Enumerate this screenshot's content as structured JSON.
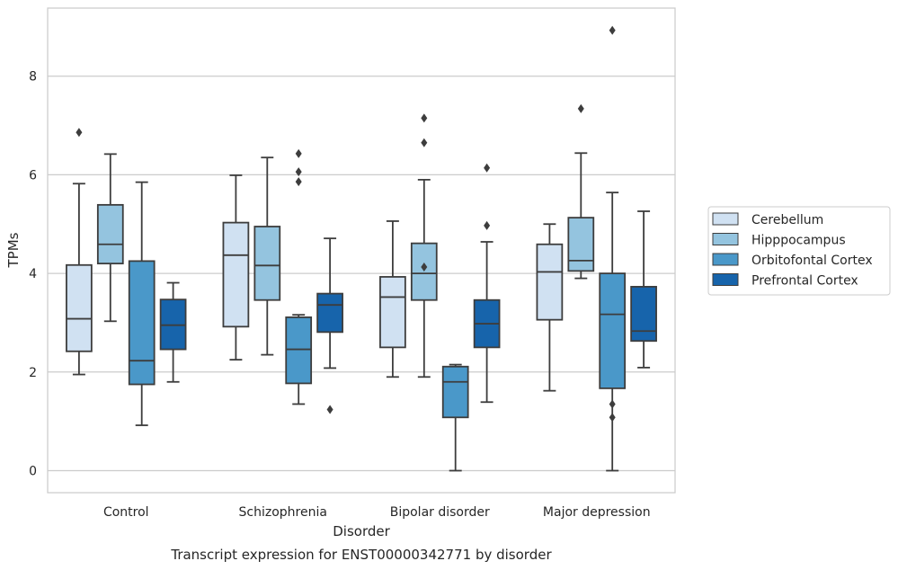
{
  "chart_data": {
    "type": "box",
    "title": "",
    "caption": "Transcript expression for ENST00000342771 by disorder",
    "xlabel": "Disorder",
    "ylabel": "TPMs",
    "ylim": [
      -0.4,
      9.3
    ],
    "yticks": [
      "0",
      "2",
      "4",
      "6",
      "8"
    ],
    "grid": true,
    "legend_position": "right",
    "categories": [
      "Control",
      "Schizophrenia",
      "Bipolar disorder",
      "Major depression"
    ],
    "series": [
      {
        "name": "Cerebellum",
        "color": "#d0e1f2",
        "boxes": [
          {
            "whislo": 1.95,
            "q1": 2.42,
            "med": 3.08,
            "q3": 4.17,
            "whishi": 5.82,
            "fliers": [
              6.86
            ]
          },
          {
            "whislo": 2.25,
            "q1": 2.92,
            "med": 4.37,
            "q3": 5.03,
            "whishi": 5.99,
            "fliers": []
          },
          {
            "whislo": 1.9,
            "q1": 2.5,
            "med": 3.52,
            "q3": 3.93,
            "whishi": 5.06,
            "fliers": []
          },
          {
            "whislo": 1.62,
            "q1": 3.06,
            "med": 4.03,
            "q3": 4.59,
            "whishi": 5.0,
            "fliers": []
          }
        ]
      },
      {
        "name": "Hipppocampus",
        "color": "#94c4df",
        "boxes": [
          {
            "whislo": 3.03,
            "q1": 4.2,
            "med": 4.59,
            "q3": 5.39,
            "whishi": 6.42,
            "fliers": []
          },
          {
            "whislo": 2.35,
            "q1": 3.46,
            "med": 4.16,
            "q3": 4.95,
            "whishi": 6.35,
            "fliers": []
          },
          {
            "whislo": 1.9,
            "q1": 3.46,
            "med": 4.0,
            "q3": 4.61,
            "whishi": 5.9,
            "fliers": [
              4.13,
              6.65,
              7.15
            ]
          },
          {
            "whislo": 3.9,
            "q1": 4.05,
            "med": 4.26,
            "q3": 5.13,
            "whishi": 6.44,
            "fliers": [
              7.34
            ]
          }
        ]
      },
      {
        "name": "Orbitofontal Cortex",
        "color": "#4a98c9",
        "boxes": [
          {
            "whislo": 0.92,
            "q1": 1.75,
            "med": 2.23,
            "q3": 4.25,
            "whishi": 5.85,
            "fliers": []
          },
          {
            "whislo": 1.35,
            "q1": 1.77,
            "med": 2.46,
            "q3": 3.11,
            "whishi": 3.16,
            "fliers": [
              5.86,
              6.06,
              6.43
            ]
          },
          {
            "whislo": 0.0,
            "q1": 1.08,
            "med": 1.8,
            "q3": 2.11,
            "whishi": 2.15,
            "fliers": []
          },
          {
            "whislo": 0.0,
            "q1": 1.67,
            "med": 3.17,
            "q3": 4.0,
            "whishi": 5.64,
            "fliers": [
              1.08,
              1.35,
              8.93
            ]
          }
        ]
      },
      {
        "name": "Prefrontal Cortex",
        "color": "#1764ab",
        "boxes": [
          {
            "whislo": 1.8,
            "q1": 2.46,
            "med": 2.95,
            "q3": 3.47,
            "whishi": 3.81,
            "fliers": []
          },
          {
            "whislo": 2.08,
            "q1": 2.81,
            "med": 3.36,
            "q3": 3.59,
            "whishi": 4.71,
            "fliers": [
              1.24
            ]
          },
          {
            "whislo": 1.39,
            "q1": 2.5,
            "med": 2.98,
            "q3": 3.46,
            "whishi": 4.64,
            "fliers": [
              4.97,
              6.14
            ]
          },
          {
            "whislo": 2.09,
            "q1": 2.63,
            "med": 2.83,
            "q3": 3.73,
            "whishi": 5.26,
            "fliers": []
          }
        ]
      }
    ]
  }
}
